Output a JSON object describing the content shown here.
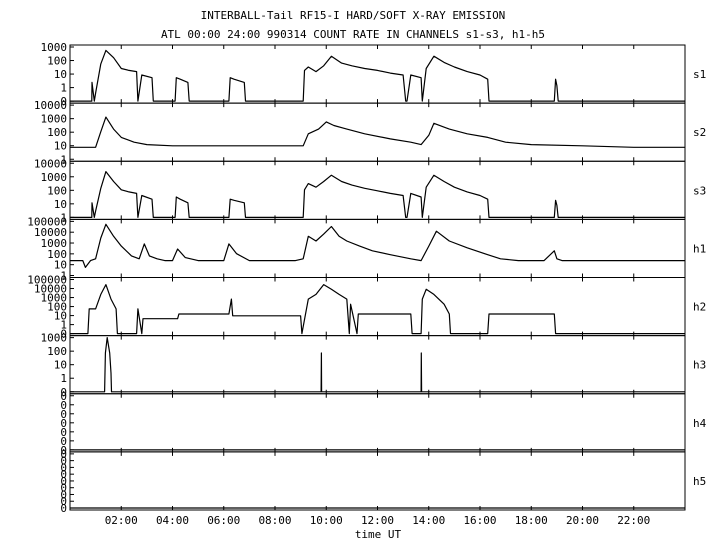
{
  "chart_data": {
    "type": "line",
    "title": "INTERBALL-Tail RF15-I HARD/SOFT X-RAY EMISSION",
    "subtitle": "ATL 00:00 24:00 990314  COUNT RATE IN CHANNELS s1-s3, h1-h5",
    "xlabel": "time UT",
    "xlim": [
      0,
      24
    ],
    "x_ticks": [
      {
        "h": 2,
        "label": "02:00"
      },
      {
        "h": 4,
        "label": "04:00"
      },
      {
        "h": 6,
        "label": "06:00"
      },
      {
        "h": 8,
        "label": "08:00"
      },
      {
        "h": 10,
        "label": "10:00"
      },
      {
        "h": 12,
        "label": "12:00"
      },
      {
        "h": 14,
        "label": "14:00"
      },
      {
        "h": 16,
        "label": "16:00"
      },
      {
        "h": 18,
        "label": "18:00"
      },
      {
        "h": 20,
        "label": "20:00"
      },
      {
        "h": 22,
        "label": "22:00"
      }
    ],
    "yscale": "log",
    "line_color": "#000000",
    "panels": [
      {
        "name": "s1",
        "ylim": [
          0.3,
          1000
        ],
        "y_ticks": [
          "1000",
          "100",
          "10",
          "1",
          "0"
        ],
        "series": {
          "x": [
            0,
            0.85,
            0.86,
            0.95,
            1.0,
            1.2,
            1.4,
            1.7,
            2.0,
            2.3,
            2.6,
            2.65,
            2.8,
            3.2,
            3.25,
            4.1,
            4.15,
            4.3,
            4.6,
            4.65,
            6.2,
            6.25,
            6.4,
            6.8,
            6.85,
            9.1,
            9.15,
            9.3,
            9.6,
            9.9,
            10.2,
            10.6,
            11.0,
            11.5,
            12.0,
            12.5,
            13.0,
            13.1,
            13.15,
            13.3,
            13.7,
            13.75,
            13.9,
            14.2,
            14.6,
            15.0,
            15.5,
            16.0,
            16.3,
            16.35,
            18.9,
            18.95,
            19.0,
            19.05,
            24
          ],
          "y": [
            0.3,
            0.3,
            5,
            0.3,
            1,
            80,
            600,
            200,
            40,
            30,
            25,
            0.3,
            15,
            10,
            0.3,
            0.3,
            10,
            8,
            5,
            0.3,
            0.3,
            10,
            8,
            5,
            0.3,
            0.3,
            30,
            50,
            25,
            60,
            250,
            90,
            60,
            40,
            30,
            20,
            15,
            0.3,
            0.3,
            15,
            10,
            0.3,
            40,
            250,
            100,
            50,
            25,
            15,
            8,
            0.3,
            0.3,
            8,
            3,
            0.3,
            0.3
          ]
        }
      },
      {
        "name": "s2",
        "ylim": [
          0.3,
          10000
        ],
        "y_ticks": [
          "10000",
          "1000",
          "100",
          "10",
          "1"
        ],
        "series": {
          "x": [
            0,
            1.0,
            1.2,
            1.4,
            1.7,
            2.0,
            2.5,
            3.0,
            4.0,
            6.0,
            8.0,
            9.1,
            9.3,
            9.7,
            10.0,
            10.3,
            10.8,
            11.5,
            12.5,
            13.3,
            13.7,
            14.0,
            14.2,
            14.8,
            15.5,
            16.3,
            17.0,
            18.0,
            20.0,
            22.0,
            24.0
          ],
          "y": [
            3,
            3,
            60,
            1000,
            100,
            20,
            8,
            5,
            4,
            4,
            4,
            4,
            40,
            100,
            400,
            200,
            100,
            40,
            15,
            8,
            5,
            30,
            300,
            100,
            40,
            20,
            8,
            5,
            4,
            3,
            3
          ]
        }
      },
      {
        "name": "s3",
        "ylim": [
          0.3,
          10000
        ],
        "y_ticks": [
          "10000",
          "1000",
          "100",
          "10",
          "1"
        ],
        "series": {
          "x": [
            0,
            0.85,
            0.86,
            0.95,
            1.0,
            1.2,
            1.4,
            1.7,
            2.0,
            2.3,
            2.6,
            2.65,
            2.8,
            3.2,
            3.25,
            4.1,
            4.15,
            4.3,
            4.6,
            4.65,
            6.2,
            6.25,
            6.4,
            6.8,
            6.85,
            9.1,
            9.15,
            9.3,
            9.6,
            9.9,
            10.2,
            10.6,
            11.0,
            11.5,
            12.0,
            12.5,
            13.0,
            13.1,
            13.15,
            13.3,
            13.7,
            13.75,
            13.9,
            14.2,
            14.6,
            15.0,
            15.5,
            16.0,
            16.3,
            16.35,
            18.9,
            18.95,
            19.0,
            19.05,
            24
          ],
          "y": [
            0.3,
            0.3,
            5,
            0.3,
            1,
            80,
            2000,
            300,
            60,
            40,
            30,
            0.3,
            20,
            10,
            0.3,
            0.3,
            15,
            10,
            5,
            0.3,
            0.3,
            10,
            8,
            5,
            0.3,
            0.3,
            60,
            200,
            100,
            300,
            1000,
            300,
            150,
            80,
            50,
            30,
            20,
            0.3,
            0.3,
            30,
            15,
            0.3,
            100,
            1000,
            300,
            100,
            40,
            20,
            10,
            0.3,
            0.3,
            8,
            3,
            0.3,
            0.3
          ]
        }
      },
      {
        "name": "h1",
        "ylim": [
          0.3,
          100000
        ],
        "y_ticks": [
          "100000",
          "10000",
          "1000",
          "100",
          "10",
          "1"
        ],
        "series": {
          "x": [
            0,
            0.5,
            0.6,
            0.8,
            1.0,
            1.2,
            1.4,
            1.7,
            2.0,
            2.4,
            2.7,
            2.9,
            3.1,
            3.4,
            3.7,
            4.0,
            4.2,
            4.5,
            5.0,
            5.5,
            6.0,
            6.2,
            6.5,
            7.0,
            8.0,
            8.8,
            9.1,
            9.3,
            9.6,
            9.9,
            10.2,
            10.5,
            10.8,
            11.3,
            11.8,
            12.5,
            13.3,
            13.7,
            14.0,
            14.3,
            14.8,
            15.5,
            16.3,
            16.8,
            17.5,
            18.5,
            18.9,
            19.0,
            19.2,
            20.5,
            22.0,
            23.5,
            24.0
          ],
          "y": [
            10,
            10,
            2,
            10,
            15,
            2000,
            50000,
            3000,
            300,
            30,
            15,
            500,
            30,
            15,
            10,
            10,
            150,
            20,
            10,
            10,
            10,
            500,
            50,
            10,
            10,
            10,
            15,
            3000,
            1000,
            5000,
            30000,
            3000,
            1000,
            300,
            100,
            40,
            15,
            10,
            300,
            10000,
            1000,
            200,
            40,
            15,
            10,
            10,
            100,
            15,
            10,
            10,
            10,
            10,
            10
          ]
        }
      },
      {
        "name": "h2",
        "ylim": [
          0.3,
          100000
        ],
        "y_ticks": [
          "100000",
          "10000",
          "1000",
          "100",
          "10",
          "1",
          "0"
        ],
        "series": {
          "x": [
            0,
            0.7,
            0.75,
            1.0,
            1.2,
            1.4,
            1.6,
            1.8,
            1.85,
            2.6,
            2.65,
            2.8,
            2.85,
            4.2,
            4.25,
            6.2,
            6.3,
            6.35,
            9.0,
            9.05,
            9.3,
            9.6,
            9.9,
            10.2,
            10.5,
            10.8,
            10.9,
            10.95,
            11.2,
            11.25,
            13.3,
            13.35,
            13.7,
            13.75,
            13.9,
            14.2,
            14.6,
            14.8,
            14.85,
            16.3,
            16.35,
            18.9,
            18.95,
            24
          ],
          "y": [
            0.3,
            0.3,
            100,
            100,
            3000,
            30000,
            1000,
            100,
            0.3,
            0.3,
            100,
            0.3,
            10,
            10,
            30,
            30,
            1000,
            20,
            20,
            0.3,
            1000,
            3000,
            30000,
            10000,
            3000,
            1000,
            0.3,
            300,
            0.3,
            30,
            30,
            0.3,
            0.3,
            1000,
            10000,
            3000,
            300,
            30,
            0.3,
            0.3,
            30,
            30,
            0.3,
            0.3
          ]
        }
      },
      {
        "name": "h3",
        "ylim": [
          0.3,
          1000
        ],
        "y_ticks": [
          "1000",
          "100",
          "10",
          "1",
          "0"
        ],
        "series": {
          "x": [
            0,
            1.35,
            1.38,
            1.45,
            1.55,
            1.6,
            1.62,
            9.8,
            9.81,
            9.82,
            13.7,
            13.71,
            13.72,
            24
          ],
          "y": [
            0.3,
            0.3,
            100,
            1000,
            100,
            5,
            0.3,
            0.3,
            100,
            0.3,
            0.3,
            100,
            0.3,
            0.3
          ]
        }
      },
      {
        "name": "h4",
        "ylim": [
          0,
          1
        ],
        "y_ticks": [
          "0",
          "0",
          "0",
          "0",
          "0",
          "0",
          "0"
        ],
        "series": {
          "x": [
            0,
            24
          ],
          "y": [
            0,
            0
          ]
        }
      },
      {
        "name": "h5",
        "ylim": [
          0,
          1
        ],
        "y_ticks": [
          "0",
          "0",
          "0",
          "0",
          "0",
          "0",
          "0",
          "0",
          "0"
        ],
        "series": {
          "x": [
            0,
            24
          ],
          "y": [
            0,
            0
          ]
        }
      }
    ]
  }
}
